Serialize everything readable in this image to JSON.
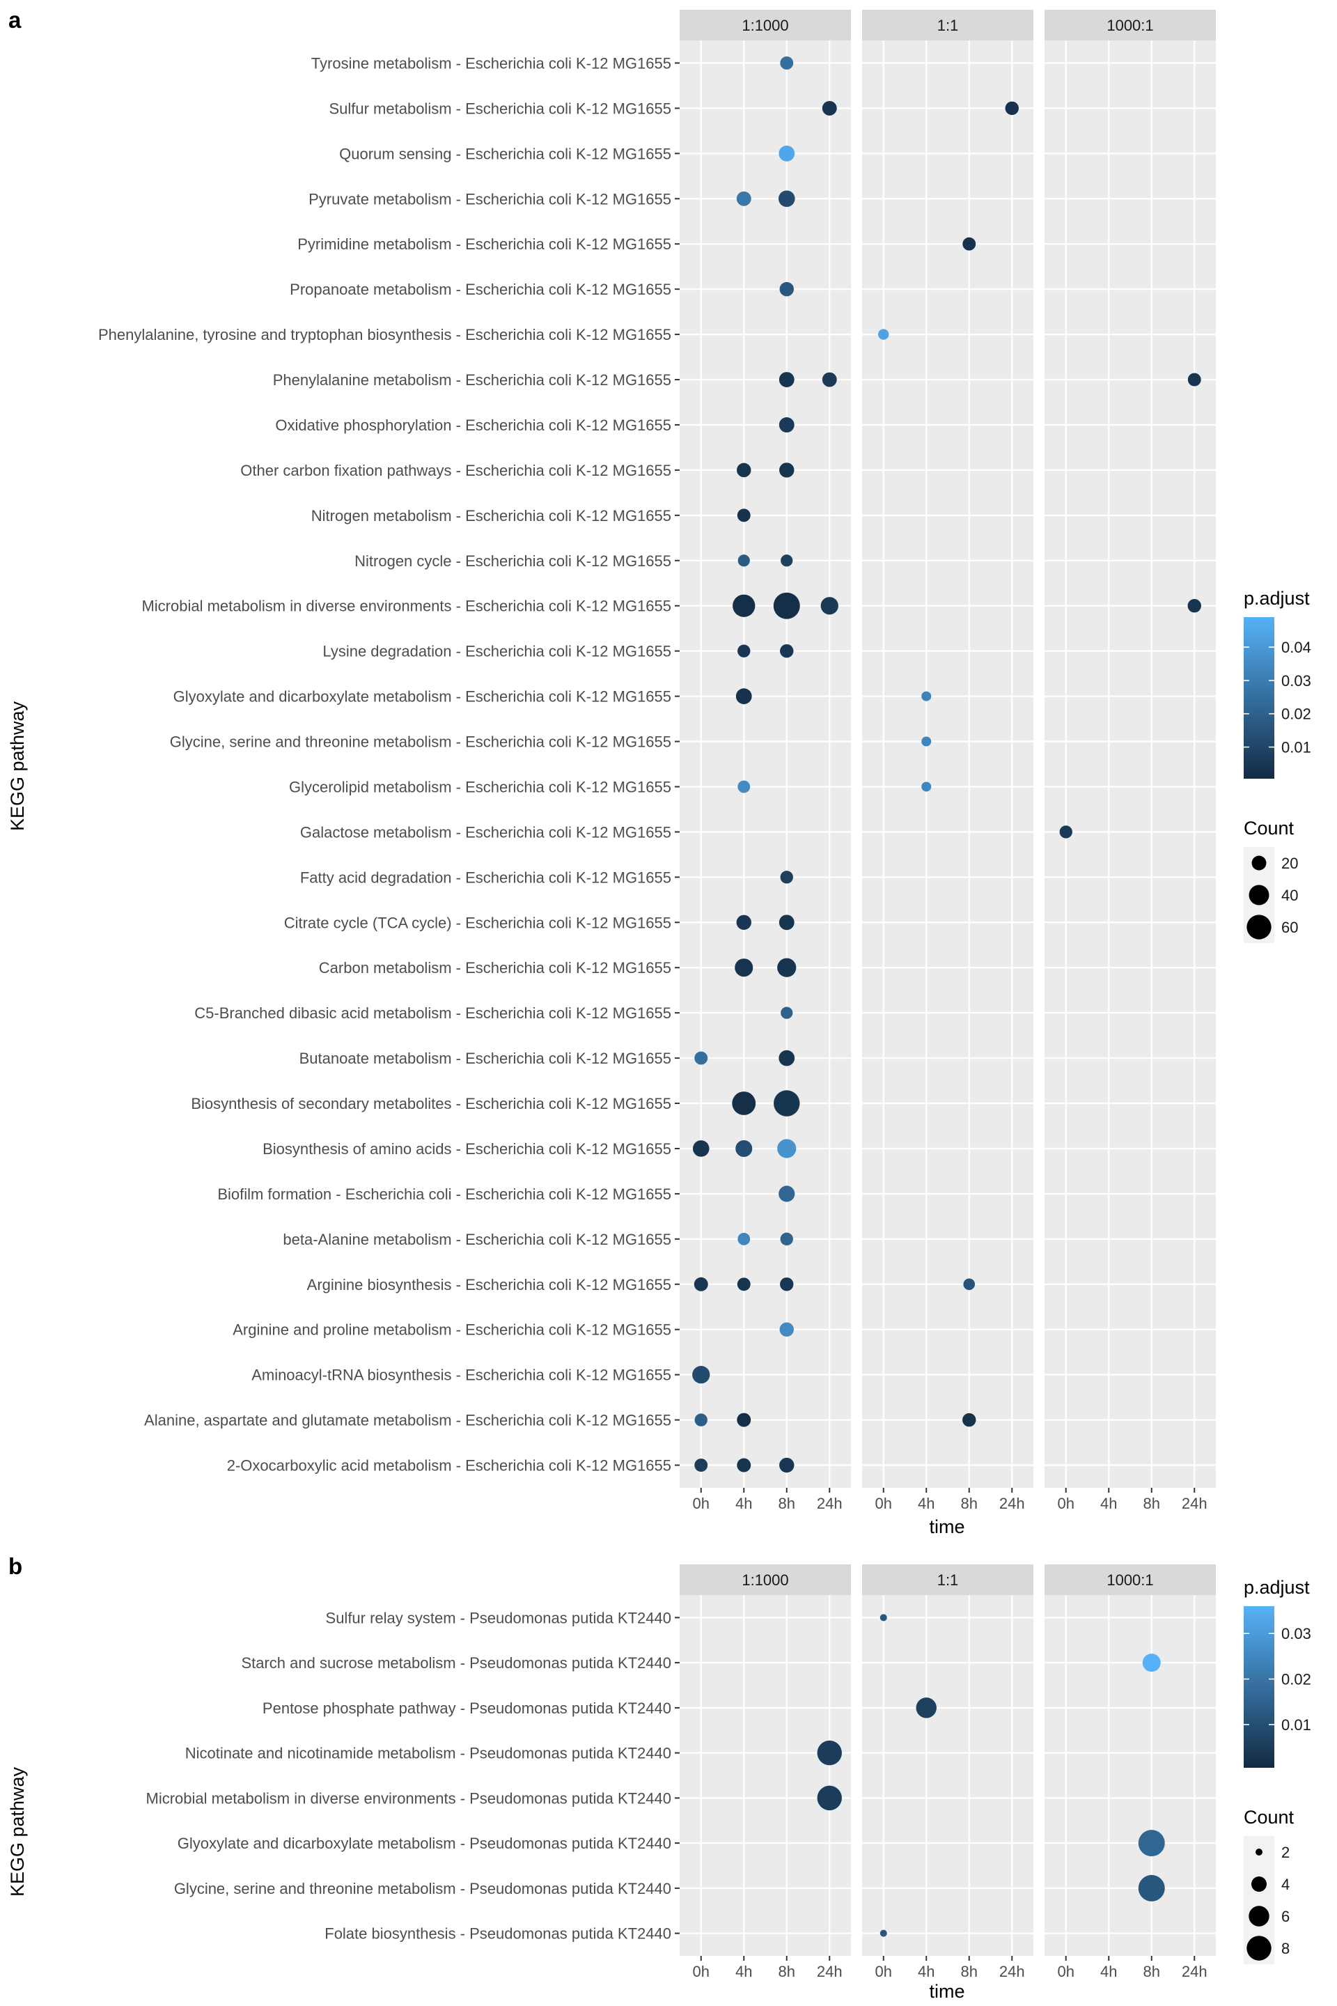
{
  "chart_data": [
    {
      "type": "scatter",
      "panel_label": "a",
      "xlabel": "time",
      "ylabel": "KEGG pathway",
      "facets": [
        "1:1000",
        "1:1",
        "1000:1"
      ],
      "x_categories": [
        "0h",
        "4h",
        "8h",
        "24h"
      ],
      "pathways": [
        "Tyrosine metabolism - Escherichia coli K-12 MG1655",
        "Sulfur metabolism - Escherichia coli K-12 MG1655",
        "Quorum sensing - Escherichia coli K-12 MG1655",
        "Pyruvate metabolism - Escherichia coli K-12 MG1655",
        "Pyrimidine metabolism - Escherichia coli K-12 MG1655",
        "Propanoate metabolism - Escherichia coli K-12 MG1655",
        "Phenylalanine, tyrosine and tryptophan biosynthesis - Escherichia coli K-12 MG1655",
        "Phenylalanine metabolism - Escherichia coli K-12 MG1655",
        "Oxidative phosphorylation - Escherichia coli K-12 MG1655",
        "Other carbon fixation pathways - Escherichia coli K-12 MG1655",
        "Nitrogen metabolism - Escherichia coli K-12 MG1655",
        "Nitrogen cycle - Escherichia coli K-12 MG1655",
        "Microbial metabolism in diverse environments - Escherichia coli K-12 MG1655",
        "Lysine degradation - Escherichia coli K-12 MG1655",
        "Glyoxylate and dicarboxylate metabolism - Escherichia coli K-12 MG1655",
        "Glycine, serine and threonine metabolism - Escherichia coli K-12 MG1655",
        "Glycerolipid metabolism - Escherichia coli K-12 MG1655",
        "Galactose metabolism - Escherichia coli K-12 MG1655",
        "Fatty acid degradation - Escherichia coli K-12 MG1655",
        "Citrate cycle (TCA cycle) - Escherichia coli K-12 MG1655",
        "Carbon metabolism - Escherichia coli K-12 MG1655",
        "C5-Branched dibasic acid metabolism - Escherichia coli K-12 MG1655",
        "Butanoate metabolism - Escherichia coli K-12 MG1655",
        "Biosynthesis of secondary metabolites - Escherichia coli K-12 MG1655",
        "Biosynthesis of amino acids - Escherichia coli K-12 MG1655",
        "Biofilm formation - Escherichia coli - Escherichia coli K-12 MG1655",
        "beta-Alanine metabolism - Escherichia coli K-12 MG1655",
        "Arginine biosynthesis - Escherichia coli K-12 MG1655",
        "Arginine and proline metabolism - Escherichia coli K-12 MG1655",
        "Aminoacyl-tRNA biosynthesis - Escherichia coli K-12 MG1655",
        "Alanine, aspartate and glutamate metabolism - Escherichia coli K-12 MG1655",
        "2-Oxocarboxylic acid metabolism - Escherichia coli K-12 MG1655"
      ],
      "legend_color": {
        "title": "p.adjust",
        "breaks": [
          0.01,
          0.02,
          0.03,
          0.04
        ],
        "break_labels": [
          "0.01",
          "0.02",
          "0.03",
          "0.04"
        ],
        "range": [
          0.0005,
          0.049
        ],
        "low_color": "#132B43",
        "high_color": "#56B1F7"
      },
      "legend_size": {
        "title": "Count",
        "breaks": [
          20,
          40,
          60
        ],
        "break_labels": [
          "20",
          "40",
          "60"
        ],
        "range": [
          8,
          70
        ]
      },
      "points": [
        {
          "facet": "1:1000",
          "time": "8h",
          "pathway": 0,
          "count": 16,
          "padj": 0.025
        },
        {
          "facet": "1:1000",
          "time": "24h",
          "pathway": 1,
          "count": 20,
          "padj": 0.004
        },
        {
          "facet": "1:1",
          "time": "24h",
          "pathway": 1,
          "count": 17,
          "padj": 0.003
        },
        {
          "facet": "1:1000",
          "time": "8h",
          "pathway": 2,
          "count": 24,
          "padj": 0.045
        },
        {
          "facet": "1:1000",
          "time": "4h",
          "pathway": 3,
          "count": 20,
          "padj": 0.028
        },
        {
          "facet": "1:1000",
          "time": "8h",
          "pathway": 3,
          "count": 26,
          "padj": 0.012
        },
        {
          "facet": "1:1",
          "time": "8h",
          "pathway": 4,
          "count": 16,
          "padj": 0.003
        },
        {
          "facet": "1:1000",
          "time": "8h",
          "pathway": 5,
          "count": 19,
          "padj": 0.016
        },
        {
          "facet": "1:1",
          "time": "0h",
          "pathway": 6,
          "count": 10,
          "padj": 0.044
        },
        {
          "facet": "1:1000",
          "time": "8h",
          "pathway": 7,
          "count": 22,
          "padj": 0.004
        },
        {
          "facet": "1:1000",
          "time": "24h",
          "pathway": 7,
          "count": 20,
          "padj": 0.006
        },
        {
          "facet": "1000:1",
          "time": "24h",
          "pathway": 7,
          "count": 16,
          "padj": 0.004
        },
        {
          "facet": "1:1000",
          "time": "8h",
          "pathway": 8,
          "count": 22,
          "padj": 0.006
        },
        {
          "facet": "1:1000",
          "time": "4h",
          "pathway": 9,
          "count": 19,
          "padj": 0.004
        },
        {
          "facet": "1:1000",
          "time": "8h",
          "pathway": 9,
          "count": 21,
          "padj": 0.004
        },
        {
          "facet": "1:1000",
          "time": "4h",
          "pathway": 10,
          "count": 16,
          "padj": 0.003
        },
        {
          "facet": "1:1000",
          "time": "4h",
          "pathway": 11,
          "count": 13,
          "padj": 0.018
        },
        {
          "facet": "1:1000",
          "time": "8h",
          "pathway": 11,
          "count": 13,
          "padj": 0.008
        },
        {
          "facet": "1:1000",
          "time": "4h",
          "pathway": 12,
          "count": 50,
          "padj": 0.002
        },
        {
          "facet": "1:1000",
          "time": "8h",
          "pathway": 12,
          "count": 70,
          "padj": 0.002
        },
        {
          "facet": "1:1000",
          "time": "24h",
          "pathway": 12,
          "count": 30,
          "padj": 0.006
        },
        {
          "facet": "1000:1",
          "time": "24h",
          "pathway": 12,
          "count": 17,
          "padj": 0.004
        },
        {
          "facet": "1:1000",
          "time": "4h",
          "pathway": 13,
          "count": 15,
          "padj": 0.005
        },
        {
          "facet": "1:1000",
          "time": "8h",
          "pathway": 13,
          "count": 17,
          "padj": 0.005
        },
        {
          "facet": "1:1000",
          "time": "4h",
          "pathway": 14,
          "count": 24,
          "padj": 0.003
        },
        {
          "facet": "1:1",
          "time": "4h",
          "pathway": 14,
          "count": 8,
          "padj": 0.032
        },
        {
          "facet": "1:1",
          "time": "4h",
          "pathway": 15,
          "count": 8,
          "padj": 0.033
        },
        {
          "facet": "1:1000",
          "time": "4h",
          "pathway": 16,
          "count": 14,
          "padj": 0.035
        },
        {
          "facet": "1:1",
          "time": "4h",
          "pathway": 16,
          "count": 8,
          "padj": 0.033
        },
        {
          "facet": "1000:1",
          "time": "0h",
          "pathway": 17,
          "count": 15,
          "padj": 0.006
        },
        {
          "facet": "1:1000",
          "time": "8h",
          "pathway": 18,
          "count": 15,
          "padj": 0.008
        },
        {
          "facet": "1:1000",
          "time": "4h",
          "pathway": 19,
          "count": 21,
          "padj": 0.005
        },
        {
          "facet": "1:1000",
          "time": "8h",
          "pathway": 19,
          "count": 22,
          "padj": 0.004
        },
        {
          "facet": "1:1000",
          "time": "4h",
          "pathway": 20,
          "count": 32,
          "padj": 0.004
        },
        {
          "facet": "1:1000",
          "time": "8h",
          "pathway": 20,
          "count": 35,
          "padj": 0.004
        },
        {
          "facet": "1:1000",
          "time": "8h",
          "pathway": 21,
          "count": 13,
          "padj": 0.02
        },
        {
          "facet": "1:1000",
          "time": "0h",
          "pathway": 22,
          "count": 16,
          "padj": 0.025
        },
        {
          "facet": "1:1000",
          "time": "8h",
          "pathway": 22,
          "count": 24,
          "padj": 0.004
        },
        {
          "facet": "1:1000",
          "time": "4h",
          "pathway": 23,
          "count": 55,
          "padj": 0.002
        },
        {
          "facet": "1:1000",
          "time": "8h",
          "pathway": 23,
          "count": 68,
          "padj": 0.004
        },
        {
          "facet": "1:1000",
          "time": "0h",
          "pathway": 24,
          "count": 26,
          "padj": 0.004
        },
        {
          "facet": "1:1000",
          "time": "4h",
          "pathway": 24,
          "count": 27,
          "padj": 0.013
        },
        {
          "facet": "1:1000",
          "time": "8h",
          "pathway": 24,
          "count": 35,
          "padj": 0.038
        },
        {
          "facet": "1:1000",
          "time": "8h",
          "pathway": 25,
          "count": 25,
          "padj": 0.022
        },
        {
          "facet": "1:1000",
          "time": "4h",
          "pathway": 26,
          "count": 14,
          "padj": 0.033
        },
        {
          "facet": "1:1000",
          "time": "8h",
          "pathway": 26,
          "count": 15,
          "padj": 0.021
        },
        {
          "facet": "1:1000",
          "time": "0h",
          "pathway": 27,
          "count": 18,
          "padj": 0.005
        },
        {
          "facet": "1:1000",
          "time": "4h",
          "pathway": 27,
          "count": 16,
          "padj": 0.004
        },
        {
          "facet": "1:1000",
          "time": "8h",
          "pathway": 27,
          "count": 17,
          "padj": 0.005
        },
        {
          "facet": "1:1",
          "time": "8h",
          "pathway": 27,
          "count": 12,
          "padj": 0.015
        },
        {
          "facet": "1:1000",
          "time": "8h",
          "pathway": 28,
          "count": 19,
          "padj": 0.035
        },
        {
          "facet": "1:1000",
          "time": "0h",
          "pathway": 29,
          "count": 30,
          "padj": 0.012
        },
        {
          "facet": "1:1000",
          "time": "0h",
          "pathway": 30,
          "count": 15,
          "padj": 0.019
        },
        {
          "facet": "1:1000",
          "time": "4h",
          "pathway": 30,
          "count": 18,
          "padj": 0.002
        },
        {
          "facet": "1:1",
          "time": "8h",
          "pathway": 30,
          "count": 17,
          "padj": 0.003
        },
        {
          "facet": "1:1000",
          "time": "0h",
          "pathway": 31,
          "count": 16,
          "padj": 0.007
        },
        {
          "facet": "1:1000",
          "time": "4h",
          "pathway": 31,
          "count": 18,
          "padj": 0.004
        },
        {
          "facet": "1:1000",
          "time": "8h",
          "pathway": 31,
          "count": 21,
          "padj": 0.005
        }
      ]
    },
    {
      "type": "scatter",
      "panel_label": "b",
      "xlabel": "time",
      "ylabel": "KEGG pathway",
      "facets": [
        "1:1000",
        "1:1",
        "1000:1"
      ],
      "x_categories": [
        "0h",
        "4h",
        "8h",
        "24h"
      ],
      "pathways": [
        "Sulfur relay system - Pseudomonas putida KT2440",
        "Starch and sucrose metabolism - Pseudomonas putida KT2440",
        "Pentose phosphate pathway - Pseudomonas putida KT2440",
        "Nicotinate and nicotinamide metabolism - Pseudomonas putida KT2440",
        "Microbial metabolism in diverse environments - Pseudomonas putida KT2440",
        "Glyoxylate and dicarboxylate metabolism - Pseudomonas putida KT2440",
        "Glycine, serine and threonine metabolism - Pseudomonas putida KT2440",
        "Folate biosynthesis - Pseudomonas putida KT2440"
      ],
      "legend_color": {
        "title": "p.adjust",
        "breaks": [
          0.01,
          0.02,
          0.03
        ],
        "break_labels": [
          "0.01",
          "0.02",
          "0.03"
        ],
        "range": [
          0.0005,
          0.036
        ],
        "low_color": "#132B43",
        "high_color": "#56B1F7"
      },
      "legend_size": {
        "title": "Count",
        "breaks": [
          2,
          4,
          6,
          8
        ],
        "break_labels": [
          "2",
          "4",
          "6",
          "8"
        ],
        "range": [
          2,
          9
        ]
      },
      "points": [
        {
          "facet": "1:1",
          "time": "0h",
          "pathway": 0,
          "count": 2,
          "padj": 0.012
        },
        {
          "facet": "1000:1",
          "time": "8h",
          "pathway": 1,
          "count": 5,
          "padj": 0.036
        },
        {
          "facet": "1:1",
          "time": "4h",
          "pathway": 2,
          "count": 6,
          "padj": 0.006
        },
        {
          "facet": "1:1000",
          "time": "24h",
          "pathway": 3,
          "count": 8,
          "padj": 0.005
        },
        {
          "facet": "1:1000",
          "time": "24h",
          "pathway": 4,
          "count": 8,
          "padj": 0.005
        },
        {
          "facet": "1000:1",
          "time": "8h",
          "pathway": 5,
          "count": 9,
          "padj": 0.016
        },
        {
          "facet": "1000:1",
          "time": "8h",
          "pathway": 6,
          "count": 9,
          "padj": 0.012
        },
        {
          "facet": "1:1",
          "time": "0h",
          "pathway": 7,
          "count": 2,
          "padj": 0.012
        }
      ]
    }
  ]
}
